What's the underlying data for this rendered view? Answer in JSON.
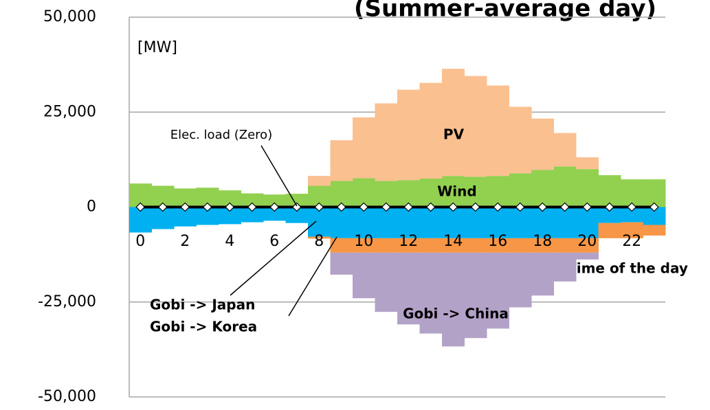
{
  "chart_data": {
    "type": "stacked_area_step",
    "title": "(Summer-average day)",
    "y_unit_label": "[MW]",
    "x_label": "Time of the day",
    "categories": [
      0,
      null,
      2,
      null,
      4,
      null,
      6,
      null,
      8,
      null,
      10,
      null,
      12,
      null,
      14,
      null,
      16,
      null,
      18,
      null,
      20,
      null,
      22,
      null
    ],
    "ylim": [
      -50000,
      50000
    ],
    "yticks": [
      {
        "value": -50000,
        "label": "-50,000"
      },
      {
        "value": -25000,
        "label": "-25,000"
      },
      0,
      {
        "value": 25000,
        "label": "25,000"
      },
      {
        "value": 50000,
        "label": "50,000"
      }
    ],
    "grid": true,
    "series": [
      {
        "name": "Wind",
        "color": "#92d050",
        "stack": "positive",
        "values": [
          6200,
          5600,
          4900,
          5100,
          4400,
          3600,
          3300,
          3500,
          5600,
          6900,
          7600,
          6900,
          7100,
          7500,
          8200,
          8000,
          8200,
          8900,
          9800,
          10700,
          10000,
          8400,
          7300,
          7300
        ]
      },
      {
        "name": "PV",
        "color": "#fac090",
        "stack": "positive",
        "values": [
          0,
          0,
          0,
          0,
          0,
          0,
          0,
          0,
          2600,
          10700,
          16000,
          20400,
          23800,
          25200,
          28200,
          26500,
          23800,
          17500,
          13500,
          8800,
          3100,
          0,
          0,
          0
        ]
      },
      {
        "name": "Gobi -> Japan",
        "color": "#00b0f0",
        "stack": "negative",
        "values": [
          -6700,
          -5800,
          -5100,
          -4700,
          -4500,
          -4000,
          -3600,
          -4200,
          -7800,
          -8200,
          -8200,
          -8200,
          -8200,
          -8200,
          -8200,
          -8200,
          -8200,
          -8200,
          -8200,
          -8200,
          -8200,
          -4200,
          -4000,
          -4700
        ]
      },
      {
        "name": "Gobi -> Korea",
        "color": "#f79646",
        "stack": "negative",
        "values": [
          0,
          0,
          0,
          0,
          0,
          0,
          0,
          0,
          -500,
          -3800,
          -3800,
          -3800,
          -3800,
          -3800,
          -3800,
          -3800,
          -3800,
          -3800,
          -3800,
          -3800,
          -3800,
          -4000,
          -4200,
          -2800
        ]
      },
      {
        "name": "Gobi -> China",
        "color": "#b3a2c7",
        "stack": "negative",
        "values": [
          0,
          0,
          0,
          0,
          0,
          0,
          0,
          0,
          0,
          -5800,
          -12000,
          -15600,
          -18900,
          -21300,
          -24700,
          -22500,
          -20000,
          -14400,
          -11300,
          -7600,
          -1800,
          0,
          0,
          0
        ]
      },
      {
        "name": "Elec. load (Zero)",
        "color": "#000000",
        "kind": "line",
        "values": [
          0,
          0,
          0,
          0,
          0,
          0,
          0,
          0,
          0,
          0,
          0,
          0,
          0,
          0,
          0,
          0,
          0,
          0,
          0,
          0,
          0,
          0,
          0,
          0
        ]
      }
    ]
  }
}
